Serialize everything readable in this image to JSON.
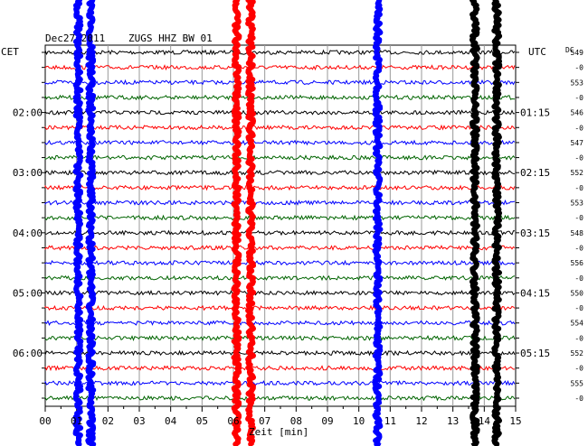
{
  "header": {
    "date": "Dec27 2011",
    "station": "ZUGS HHZ BW 01",
    "left_label": "CET",
    "right_label": "UTC",
    "dc_label": "DC"
  },
  "chart_data": {
    "type": "line",
    "title": "Dec27 2011  ZUGS HHZ BW 01",
    "xlabel": "Zeit [min]",
    "xlim": [
      0,
      15
    ],
    "x_ticks": [
      "00",
      "01",
      "02",
      "03",
      "04",
      "05",
      "06",
      "07",
      "08",
      "09",
      "10",
      "11",
      "12",
      "13",
      "14",
      "15"
    ],
    "row_count": 24,
    "row_colors": [
      "#000000",
      "#ff0000",
      "#0000ff",
      "#006400"
    ],
    "cet_labels": [
      {
        "row": 4,
        "text": "02:00"
      },
      {
        "row": 8,
        "text": "03:00"
      },
      {
        "row": 12,
        "text": "04:00"
      },
      {
        "row": 16,
        "text": "05:00"
      },
      {
        "row": 20,
        "text": "06:00"
      }
    ],
    "utc_labels": [
      {
        "row": 4,
        "text": "01:15"
      },
      {
        "row": 8,
        "text": "02:15"
      },
      {
        "row": 12,
        "text": "03:15"
      },
      {
        "row": 16,
        "text": "04:15"
      },
      {
        "row": 20,
        "text": "05:15"
      }
    ],
    "dc_values": [
      "549",
      "-0",
      "553",
      "-0",
      "546",
      "-0",
      "547",
      "-0",
      "552",
      "-0",
      "553",
      "-0",
      "548",
      "-0",
      "556",
      "-0",
      "550",
      "-0",
      "554",
      "-0",
      "552",
      "-0",
      "555",
      "-0"
    ],
    "events": [
      {
        "minute": 1.05,
        "color": "#0000ff",
        "rows": [
          0,
          23
        ]
      },
      {
        "minute": 1.45,
        "color": "#0000ff",
        "rows": [
          0,
          23
        ]
      },
      {
        "minute": 6.1,
        "color": "#ff0000",
        "rows": [
          0,
          23
        ]
      },
      {
        "minute": 6.55,
        "color": "#ff0000",
        "rows": [
          0,
          23
        ]
      },
      {
        "minute": 10.6,
        "color": "#0000ff",
        "rows": [
          0,
          23
        ]
      },
      {
        "minute": 13.7,
        "color": "#000000",
        "rows": [
          0,
          23
        ]
      },
      {
        "minute": 14.4,
        "color": "#000000",
        "rows": [
          0,
          23
        ]
      }
    ],
    "grid": true
  }
}
